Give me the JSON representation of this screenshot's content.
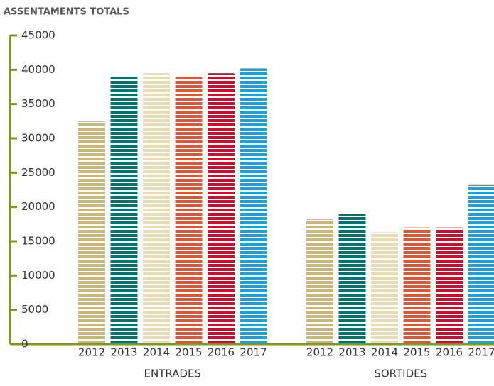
{
  "chart_data": {
    "type": "bar",
    "title": "ASSENTAMENTS TOTALS",
    "categories": [
      "ENTRADES",
      "SORTIDES"
    ],
    "series": [
      {
        "name": "2012",
        "color": "#c9b67a",
        "values": [
          32500,
          18200
        ]
      },
      {
        "name": "2013",
        "color": "#00736d",
        "values": [
          39000,
          19000
        ]
      },
      {
        "name": "2014",
        "color": "#e8dcb5",
        "values": [
          39500,
          16300
        ]
      },
      {
        "name": "2015",
        "color": "#d9583a",
        "values": [
          39000,
          17000
        ]
      },
      {
        "name": "2016",
        "color": "#c8102e",
        "values": [
          39500,
          17000
        ]
      },
      {
        "name": "2017",
        "color": "#1e9fd8",
        "values": [
          40200,
          23200
        ]
      }
    ],
    "ylim": [
      0,
      45000
    ],
    "yticks": [
      0,
      5000,
      10000,
      15000,
      20000,
      25000,
      30000,
      35000,
      40000,
      45000
    ],
    "axis_color": "#7a9a1a"
  }
}
